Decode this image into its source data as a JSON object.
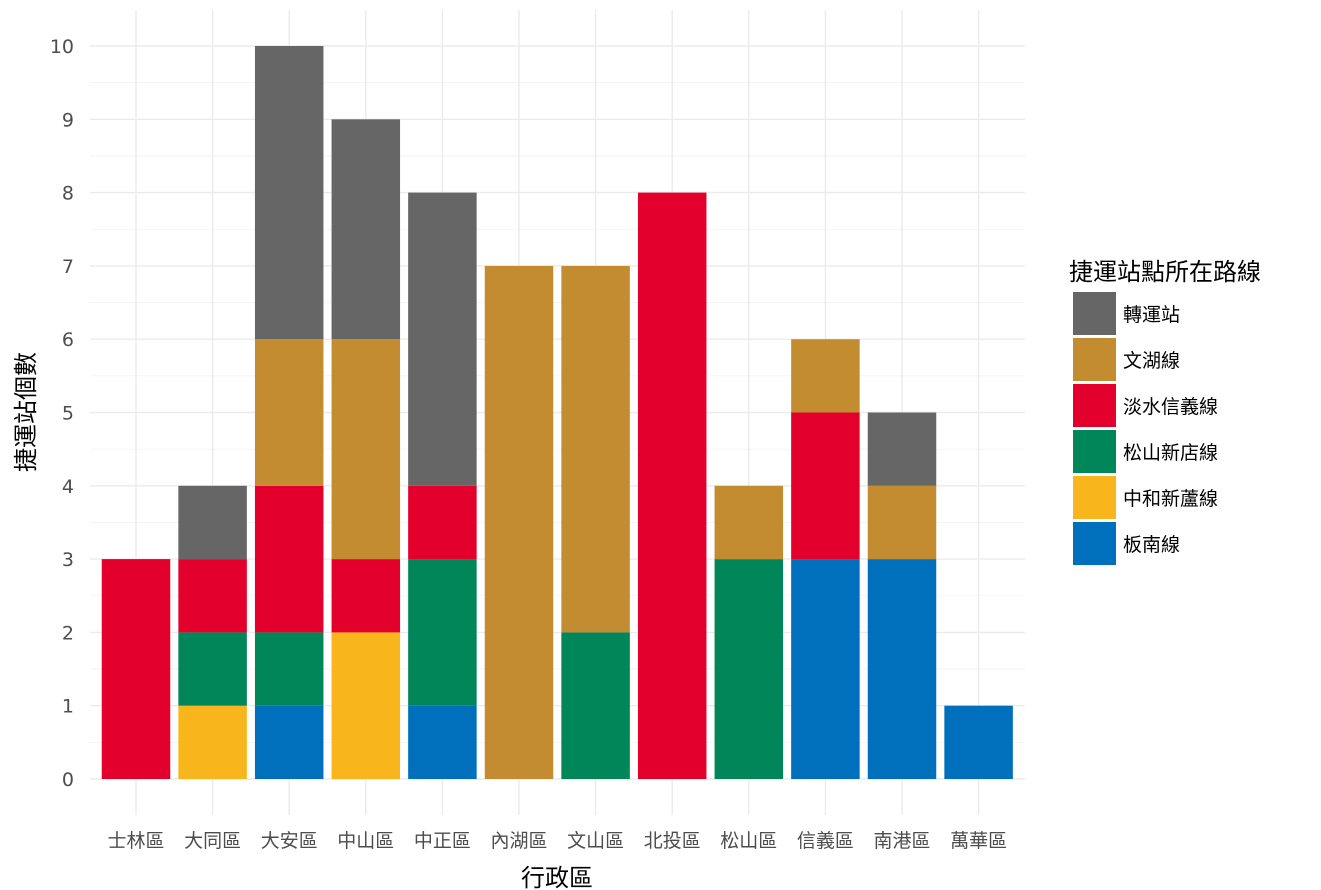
{
  "chart_data": {
    "type": "bar",
    "stacked": true,
    "title": "",
    "xlabel": "行政區",
    "ylabel": "捷運站個數",
    "ylim": [
      0,
      10
    ],
    "yticks": [
      "0",
      "1",
      "2",
      "3",
      "4",
      "5",
      "6",
      "7",
      "8",
      "9",
      "10"
    ],
    "grid": true,
    "legend_position": "right",
    "legend_title": "捷運站點所在路線",
    "categories": [
      "士林區",
      "大同區",
      "大安區",
      "中山區",
      "中正區",
      "內湖區",
      "文山區",
      "北投區",
      "松山區",
      "信義區",
      "南港區",
      "萬華區"
    ],
    "series": [
      {
        "name": "板南線",
        "color": "#0070BD",
        "values": [
          0,
          0,
          1,
          0,
          1,
          0,
          0,
          0,
          0,
          3,
          3,
          1
        ]
      },
      {
        "name": "中和新蘆線",
        "color": "#F8B61C",
        "values": [
          0,
          1,
          0,
          2,
          0,
          0,
          0,
          0,
          0,
          0,
          0,
          0
        ]
      },
      {
        "name": "松山新店線",
        "color": "#008659",
        "values": [
          0,
          1,
          1,
          0,
          2,
          0,
          2,
          0,
          3,
          0,
          0,
          0
        ]
      },
      {
        "name": "淡水信義線",
        "color": "#E3002C",
        "values": [
          3,
          1,
          2,
          1,
          1,
          0,
          0,
          8,
          0,
          2,
          0,
          0
        ]
      },
      {
        "name": "文湖線",
        "color": "#C48C31",
        "values": [
          0,
          0,
          2,
          3,
          0,
          7,
          5,
          0,
          1,
          1,
          1,
          0
        ]
      },
      {
        "name": "轉運站",
        "color": "#666666",
        "values": [
          0,
          1,
          4,
          3,
          4,
          0,
          0,
          0,
          0,
          0,
          1,
          0
        ]
      }
    ],
    "legend_order": [
      "轉運站",
      "文湖線",
      "淡水信義線",
      "松山新店線",
      "中和新蘆線",
      "板南線"
    ]
  }
}
